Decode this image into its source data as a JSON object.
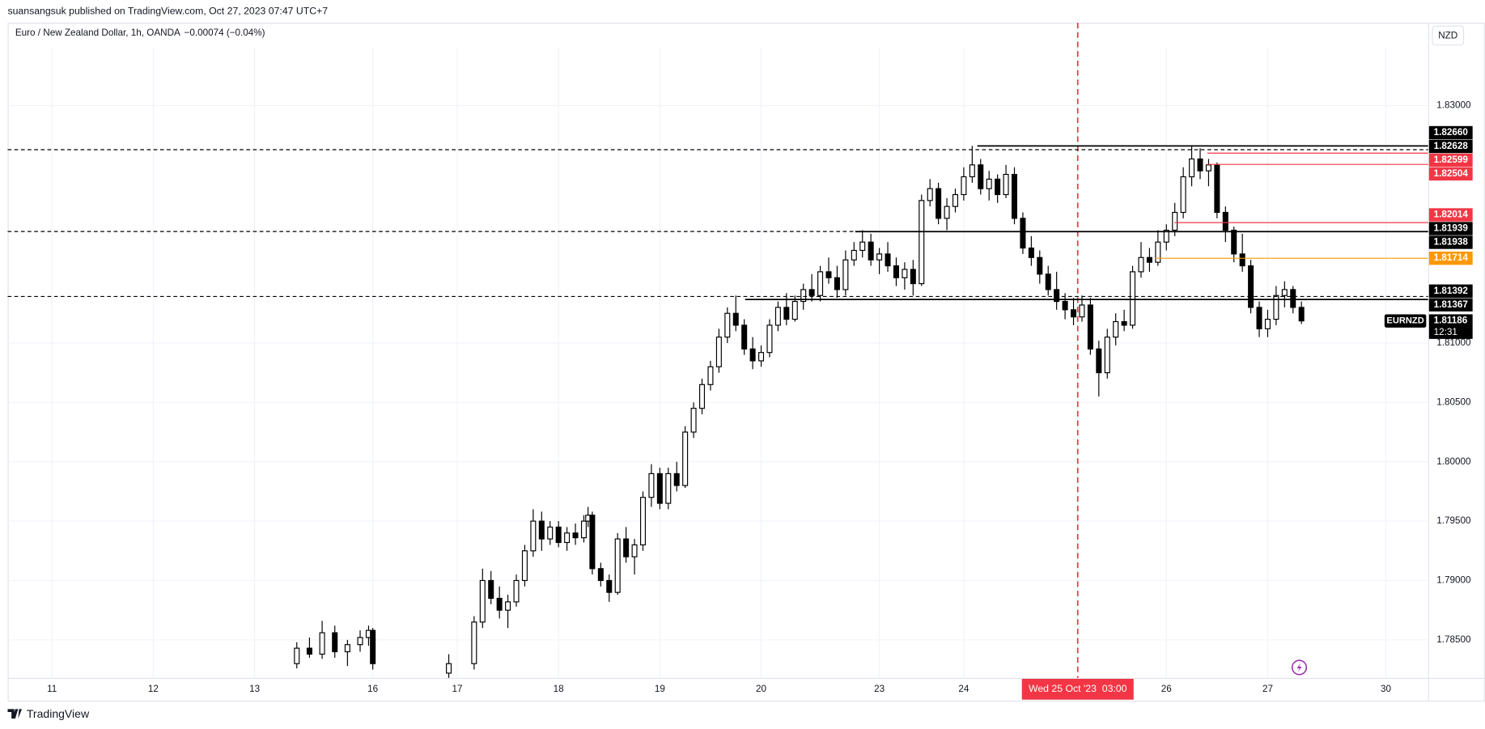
{
  "header": "suansangsuk published on TradingView.com, Oct 27, 2023 07:47 UTC+7",
  "footer": "TradingView",
  "chart_data": {
    "type": "candlestick",
    "title": "Euro / New Zealand Dollar, 1h, OANDA",
    "change": "−0.00074 (−0.04%)",
    "currency": "NZD",
    "symbol": "EURNZD",
    "last": {
      "value": 1.81186,
      "label": "1.81186",
      "countdown": "12:31"
    },
    "crosshair": {
      "x": 243,
      "label": "Wed 25 Oct '23  03:00",
      "color": "#f23645"
    },
    "up_color": "#ffffff",
    "down_color": "#000000",
    "grid": true,
    "xlim": [
      -10.5,
      326
    ],
    "xticks": [
      {
        "value": 0,
        "label": "11"
      },
      {
        "value": 24,
        "label": "12"
      },
      {
        "value": 48,
        "label": "13"
      },
      {
        "value": 76,
        "label": "16"
      },
      {
        "value": 96,
        "label": "17"
      },
      {
        "value": 120,
        "label": "18"
      },
      {
        "value": 144,
        "label": "19"
      },
      {
        "value": 168,
        "label": "20"
      },
      {
        "value": 196,
        "label": "23"
      },
      {
        "value": 216,
        "label": "24"
      },
      {
        "value": 264,
        "label": "26"
      },
      {
        "value": 288,
        "label": "27"
      },
      {
        "value": 316,
        "label": "30"
      }
    ],
    "ylim": [
      1.7818,
      1.8349
    ],
    "yticks": [
      {
        "value": 1.83,
        "label": "1.83000"
      },
      {
        "value": 1.81,
        "label": "1.81000"
      },
      {
        "value": 1.805,
        "label": "1.80500"
      },
      {
        "value": 1.8,
        "label": "1.80000"
      },
      {
        "value": 1.795,
        "label": "1.79500"
      },
      {
        "value": 1.79,
        "label": "1.79000"
      },
      {
        "value": 1.785,
        "label": "1.78500"
      }
    ],
    "levels": [
      {
        "value": 1.8266,
        "label": "1.82660",
        "color": "#000000",
        "style": "solid",
        "start": 219.2
      },
      {
        "value": 1.82628,
        "label": "1.82628",
        "color": "#000000",
        "style": "dashed"
      },
      {
        "value": 1.82599,
        "label": "1.82599",
        "color": "#f23645",
        "style": "solid",
        "start": 273.7
      },
      {
        "value": 1.82504,
        "label": "1.82504",
        "color": "#f23645",
        "style": "solid",
        "start": 273.7
      },
      {
        "value": 1.82014,
        "label": "1.82014",
        "color": "#f23645",
        "style": "solid",
        "start": 265.9
      },
      {
        "value": 1.81939,
        "label": "1.81939",
        "color": "#000000",
        "style": "dashed"
      },
      {
        "value": 1.81938,
        "label": "1.81938",
        "color": "#000000",
        "style": "solid",
        "start": 190.3
      },
      {
        "value": 1.81714,
        "label": "1.81714",
        "color": "#ff9800",
        "style": "solid",
        "start": 261.4
      },
      {
        "value": 1.81392,
        "label": "1.81392",
        "color": "#000000",
        "style": "dashed"
      },
      {
        "value": 1.81367,
        "label": "1.81367",
        "color": "#000000",
        "style": "solid",
        "start": 164.2
      }
    ],
    "x": [
      58,
      61,
      64,
      67,
      70,
      73,
      75,
      76,
      94,
      100,
      102,
      104,
      106,
      108,
      110,
      112,
      114,
      116,
      118,
      120,
      122,
      124,
      126,
      127,
      128,
      130,
      132,
      134,
      136,
      138,
      140,
      142,
      144,
      146,
      148,
      150,
      152,
      154,
      156,
      158,
      160,
      162,
      164,
      166,
      168,
      170,
      172,
      174,
      176,
      178,
      180,
      182,
      184,
      186,
      188,
      190,
      192,
      194,
      196,
      198,
      200,
      202,
      204,
      206,
      208,
      210,
      212,
      214,
      216,
      218,
      220,
      222,
      224,
      226,
      228,
      230,
      232,
      234,
      236,
      238,
      240,
      242,
      244,
      246,
      248,
      250,
      252,
      254,
      256,
      258,
      260,
      262,
      264,
      266,
      268,
      270,
      272,
      274,
      276,
      278,
      280,
      282,
      284,
      286,
      288,
      290,
      292,
      294,
      296
    ],
    "open": [
      1.783,
      1.7843,
      1.7838,
      1.7856,
      1.784,
      1.7846,
      1.7852,
      1.7858,
      1.7822,
      1.783,
      1.7865,
      1.79,
      1.7885,
      1.7875,
      1.7882,
      1.79,
      1.7925,
      1.795,
      1.7935,
      1.7945,
      1.7932,
      1.794,
      1.7936,
      1.795,
      1.7955,
      1.791,
      1.79,
      1.789,
      1.7935,
      1.792,
      1.793,
      1.797,
      1.799,
      1.7965,
      1.799,
      1.798,
      1.8025,
      1.8045,
      1.8065,
      1.808,
      1.8105,
      1.8125,
      1.8115,
      1.8095,
      1.8085,
      1.8092,
      1.8115,
      1.813,
      1.812,
      1.8135,
      1.8145,
      1.814,
      1.816,
      1.8155,
      1.8145,
      1.817,
      1.8178,
      1.8185,
      1.817,
      1.8175,
      1.8165,
      1.8155,
      1.8162,
      1.815,
      1.822,
      1.823,
      1.8205,
      1.8215,
      1.8225,
      1.824,
      1.825,
      1.823,
      1.8238,
      1.8225,
      1.8242,
      1.8205,
      1.818,
      1.8172,
      1.8158,
      1.8145,
      1.8135,
      1.8128,
      1.8122,
      1.8132,
      1.8095,
      1.8075,
      1.8105,
      1.8118,
      1.8115,
      1.816,
      1.8172,
      1.8168,
      1.8185,
      1.8195,
      1.821,
      1.824,
      1.8255,
      1.8245,
      1.825,
      1.821,
      1.8195,
      1.8175,
      1.8165,
      1.813,
      1.8112,
      1.812,
      1.814,
      1.8145,
      1.813
    ],
    "high": [
      1.7848,
      1.7852,
      1.7866,
      1.7862,
      1.785,
      1.7858,
      1.7862,
      1.786,
      1.7838,
      1.787,
      1.791,
      1.7908,
      1.7895,
      1.7888,
      1.7905,
      1.793,
      1.796,
      1.7958,
      1.795,
      1.795,
      1.7945,
      1.7948,
      1.7955,
      1.7962,
      1.7958,
      1.7915,
      1.7905,
      1.794,
      1.7945,
      1.7935,
      1.7975,
      1.7998,
      1.7995,
      1.7995,
      1.8,
      1.803,
      1.805,
      1.807,
      1.8085,
      1.8112,
      1.813,
      1.814,
      1.812,
      1.8105,
      1.8098,
      1.812,
      1.8135,
      1.8142,
      1.814,
      1.815,
      1.8158,
      1.8165,
      1.8172,
      1.8165,
      1.8178,
      1.8185,
      1.8195,
      1.8192,
      1.818,
      1.8185,
      1.8172,
      1.8168,
      1.817,
      1.8225,
      1.8238,
      1.8235,
      1.8222,
      1.823,
      1.8248,
      1.8266,
      1.8255,
      1.8245,
      1.8242,
      1.825,
      1.8248,
      1.821,
      1.819,
      1.8178,
      1.8165,
      1.816,
      1.8142,
      1.8138,
      1.814,
      1.8138,
      1.8102,
      1.8112,
      1.8125,
      1.8128,
      1.8165,
      1.8185,
      1.818,
      1.8195,
      1.82,
      1.8218,
      1.8248,
      1.8266,
      1.8264,
      1.8255,
      1.8252,
      1.8215,
      1.8198,
      1.8192,
      1.817,
      1.8135,
      1.8128,
      1.8148,
      1.8152,
      1.8148,
      1.8135
    ],
    "low": [
      1.7826,
      1.7835,
      1.7834,
      1.7835,
      1.7828,
      1.784,
      1.7845,
      1.7825,
      1.7815,
      1.7825,
      1.786,
      1.788,
      1.7868,
      1.786,
      1.7878,
      1.7895,
      1.792,
      1.7925,
      1.793,
      1.7928,
      1.7925,
      1.793,
      1.7932,
      1.7945,
      1.7905,
      1.7895,
      1.7882,
      1.7888,
      1.7915,
      1.7905,
      1.7925,
      1.7962,
      1.796,
      1.796,
      1.7975,
      1.7978,
      1.802,
      1.804,
      1.806,
      1.8075,
      1.81,
      1.811,
      1.809,
      1.8078,
      1.808,
      1.8088,
      1.811,
      1.8115,
      1.8118,
      1.8128,
      1.8135,
      1.8135,
      1.815,
      1.8138,
      1.814,
      1.8165,
      1.8172,
      1.8165,
      1.8158,
      1.816,
      1.8148,
      1.8145,
      1.814,
      1.8148,
      1.8215,
      1.82,
      1.8195,
      1.821,
      1.822,
      1.8235,
      1.8225,
      1.822,
      1.8218,
      1.8222,
      1.82,
      1.8175,
      1.8165,
      1.815,
      1.814,
      1.8128,
      1.812,
      1.8115,
      1.8118,
      1.809,
      1.8055,
      1.807,
      1.8098,
      1.811,
      1.8112,
      1.8155,
      1.816,
      1.8165,
      1.8178,
      1.819,
      1.8205,
      1.8232,
      1.8238,
      1.8232,
      1.8205,
      1.8185,
      1.8168,
      1.816,
      1.8125,
      1.8105,
      1.8105,
      1.8115,
      1.813,
      1.8125,
      1.8116
    ],
    "close": [
      1.7843,
      1.7838,
      1.7856,
      1.784,
      1.7846,
      1.7852,
      1.7858,
      1.783,
      1.783,
      1.7865,
      1.79,
      1.7885,
      1.7875,
      1.7882,
      1.79,
      1.7925,
      1.795,
      1.7935,
      1.7945,
      1.7932,
      1.794,
      1.7936,
      1.795,
      1.7955,
      1.791,
      1.79,
      1.789,
      1.7935,
      1.792,
      1.793,
      1.797,
      1.799,
      1.7965,
      1.799,
      1.798,
      1.8025,
      1.8045,
      1.8065,
      1.808,
      1.8105,
      1.8125,
      1.8115,
      1.8095,
      1.8085,
      1.8092,
      1.8115,
      1.813,
      1.812,
      1.8135,
      1.8145,
      1.814,
      1.816,
      1.8155,
      1.8145,
      1.817,
      1.8178,
      1.8185,
      1.817,
      1.8175,
      1.8165,
      1.8155,
      1.8162,
      1.815,
      1.822,
      1.823,
      1.8205,
      1.8215,
      1.8225,
      1.824,
      1.825,
      1.823,
      1.8238,
      1.8225,
      1.8242,
      1.8205,
      1.818,
      1.8172,
      1.8158,
      1.8145,
      1.8135,
      1.8128,
      1.8122,
      1.8132,
      1.8095,
      1.8075,
      1.8105,
      1.8118,
      1.8115,
      1.816,
      1.8172,
      1.8168,
      1.8185,
      1.8195,
      1.821,
      1.824,
      1.8255,
      1.8245,
      1.825,
      1.821,
      1.8195,
      1.8175,
      1.8165,
      1.813,
      1.8112,
      1.812,
      1.814,
      1.8145,
      1.813,
      1.81186
    ]
  }
}
